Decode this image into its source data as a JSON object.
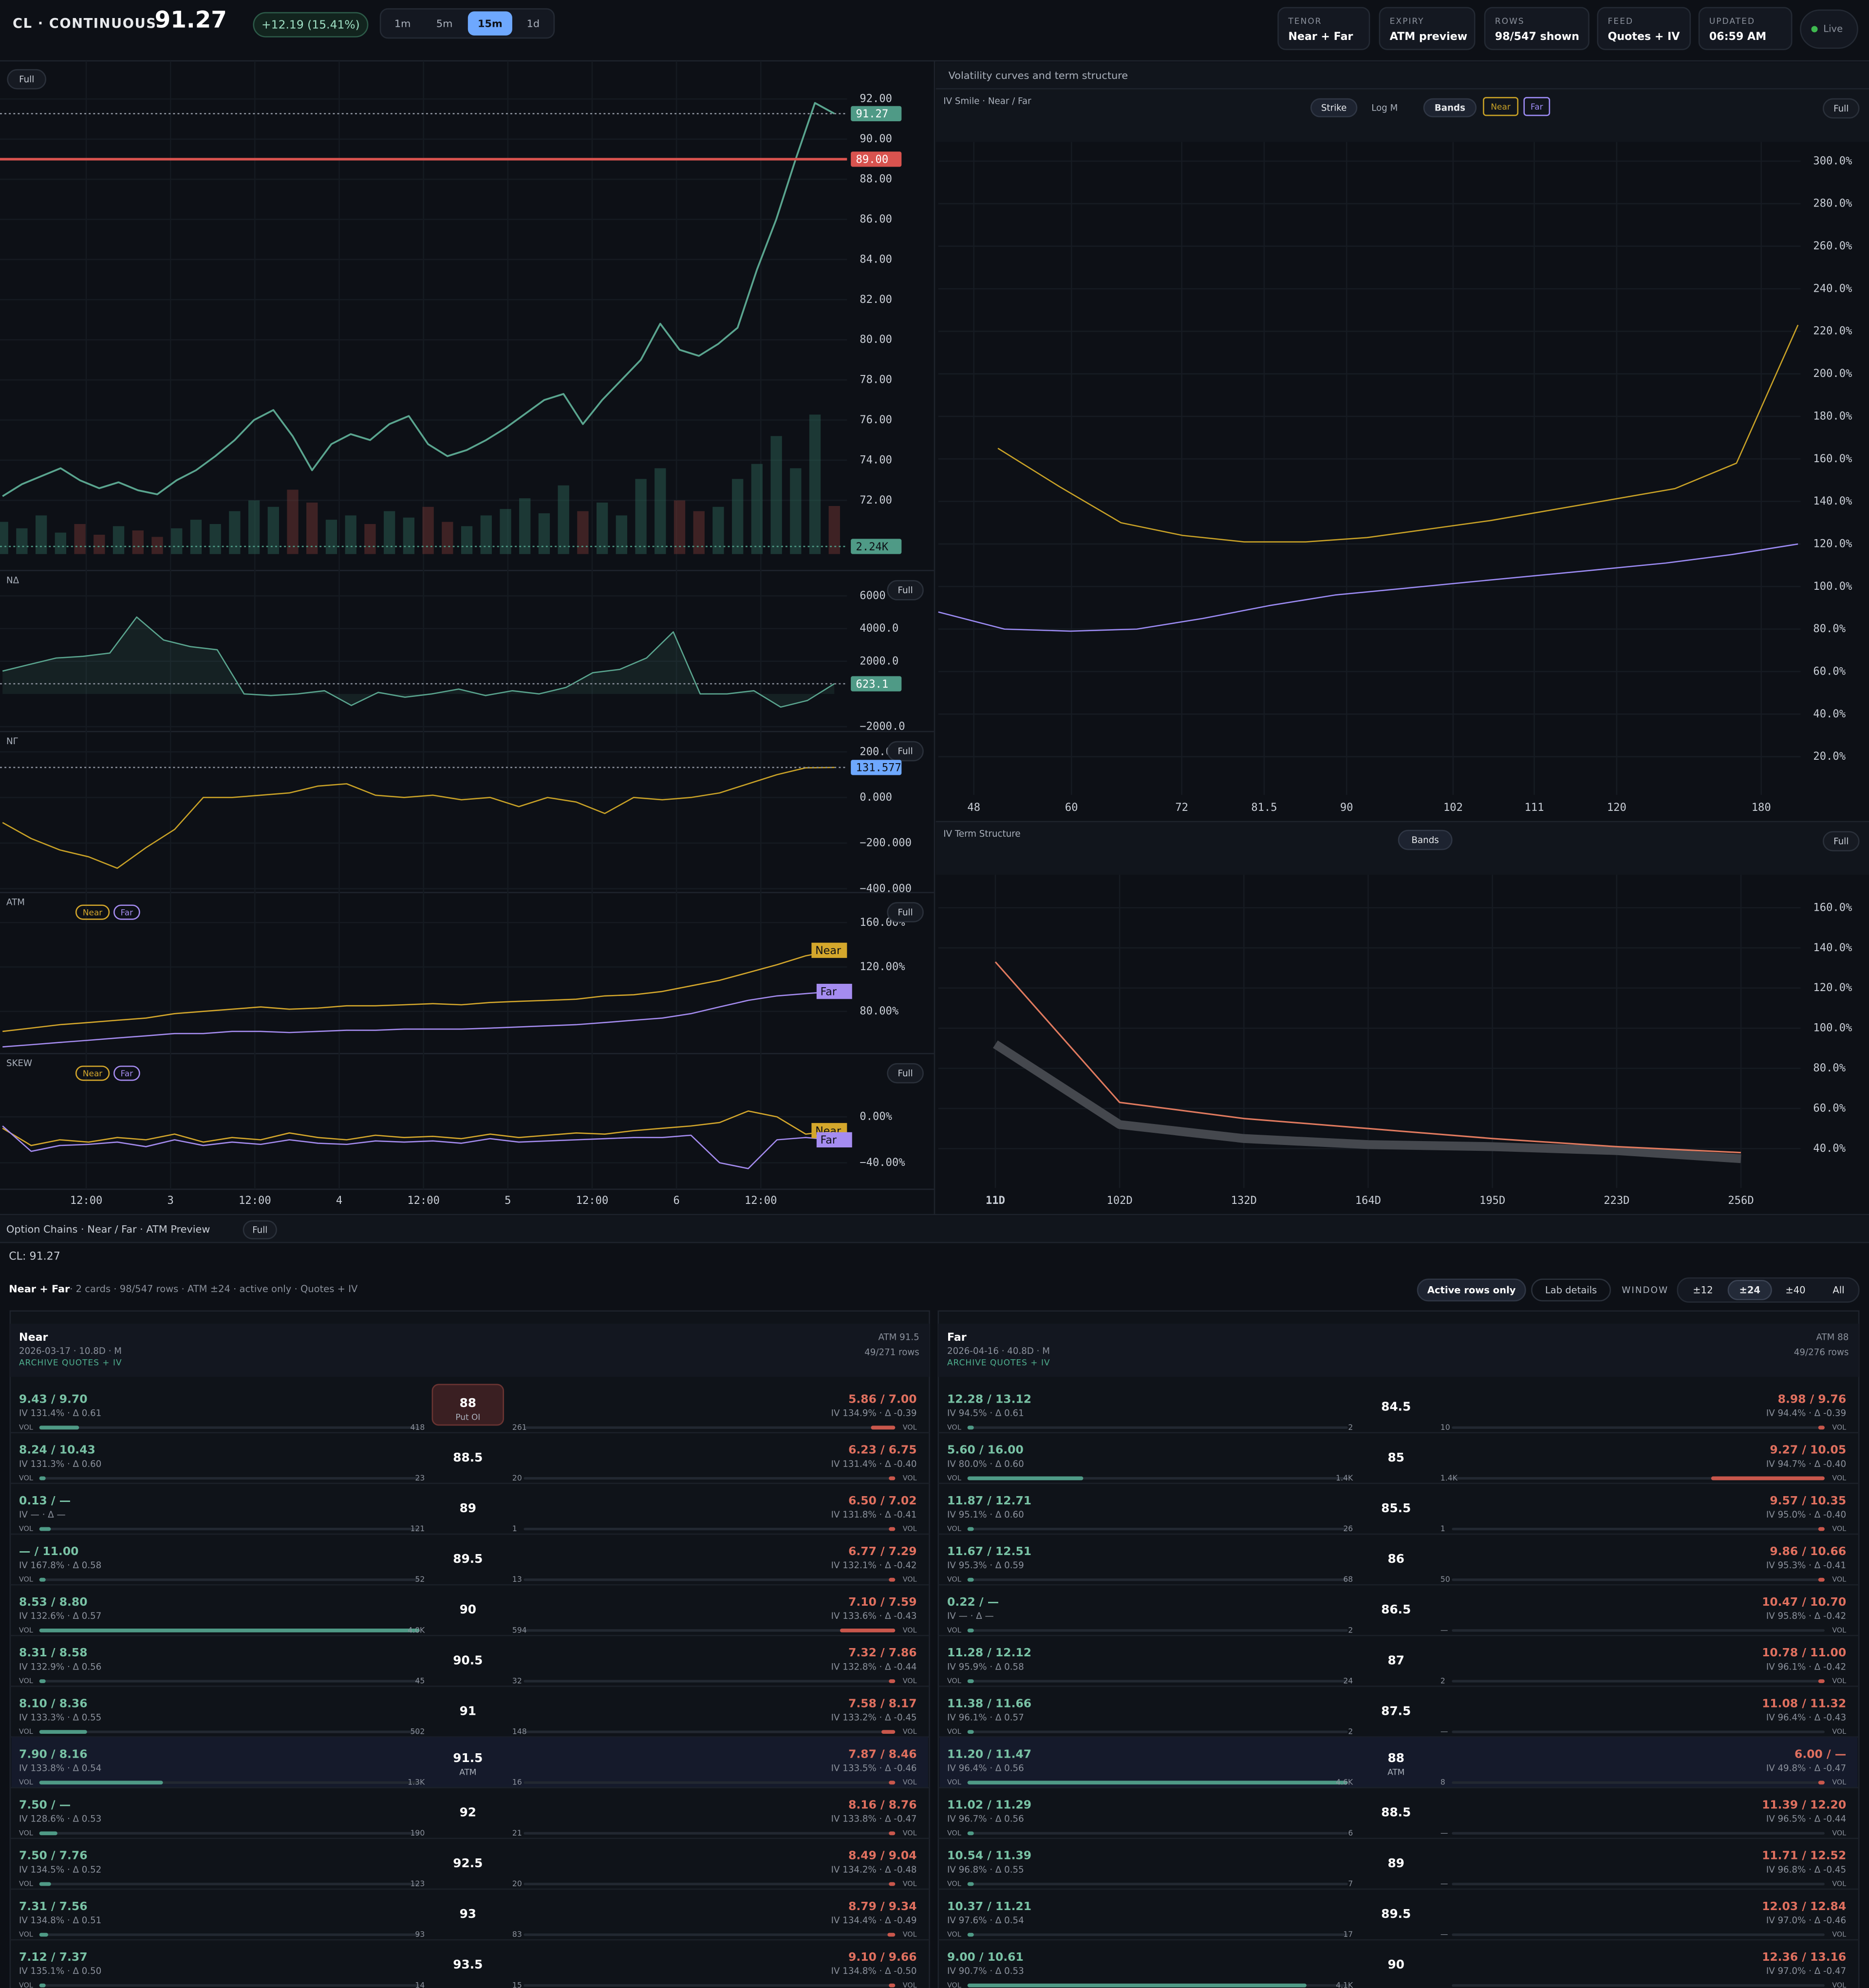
{
  "header": {
    "symbol": "CL · CONTINUOUS",
    "price": "91.27",
    "change": "+12.19 (15.41%)",
    "intervals": [
      "1m",
      "5m",
      "15m",
      "1d"
    ],
    "active_interval": "15m",
    "stats": [
      {
        "label": "TENOR",
        "value": "Near + Far"
      },
      {
        "label": "EXPIRY",
        "value": "ATM preview"
      },
      {
        "label": "ROWS",
        "value": "98/547 shown"
      },
      {
        "label": "FEED",
        "value": "Quotes + IV"
      },
      {
        "label": "UPDATED",
        "value": "06:59 AM"
      }
    ],
    "status": "Live"
  },
  "full_button": "Full",
  "right_title": "Volatility curves and term structure",
  "time_axis": [
    "12:00",
    "3",
    "12:00",
    "4",
    "12:00",
    "5",
    "12:00",
    "6",
    "12:00"
  ],
  "chart_data": [
    {
      "type": "line",
      "color": "#5aa58f",
      "ylim": [
        68.5,
        93.9
      ],
      "yticks": [
        {
          "value": 92,
          "label": "92.00"
        },
        {
          "value": 90,
          "label": "90.00"
        },
        {
          "value": 88,
          "label": "88.00"
        },
        {
          "value": 86,
          "label": "86.00"
        },
        {
          "value": 84,
          "label": "84.00"
        },
        {
          "value": 82,
          "label": "82.00"
        },
        {
          "value": 80,
          "label": "80.00"
        },
        {
          "value": 78,
          "label": "78.00"
        },
        {
          "value": 76,
          "label": "76.00"
        },
        {
          "value": 74,
          "label": "74.00"
        },
        {
          "value": 72,
          "label": "72.00"
        }
      ],
      "values": [
        72.2,
        72.8,
        73.2,
        73.6,
        73.0,
        72.6,
        72.9,
        72.5,
        72.3,
        73.0,
        73.5,
        74.2,
        75.0,
        76.0,
        76.5,
        75.2,
        73.5,
        74.8,
        75.3,
        75.0,
        75.8,
        76.2,
        74.8,
        74.2,
        74.5,
        75.0,
        75.6,
        76.3,
        77.0,
        77.3,
        75.8,
        77.0,
        78.0,
        79.0,
        80.8,
        79.5,
        79.2,
        79.8,
        80.6,
        83.5,
        86.0,
        89.0,
        91.8,
        91.27
      ],
      "volumes": [
        1.5,
        1.2,
        1.8,
        1.0,
        1.4,
        0.9,
        1.3,
        1.1,
        0.8,
        1.2,
        1.6,
        1.4,
        2.0,
        2.5,
        2.2,
        3.0,
        2.4,
        1.6,
        1.8,
        1.4,
        2.0,
        1.7,
        2.2,
        1.5,
        1.3,
        1.8,
        2.1,
        2.6,
        1.9,
        3.2,
        2.0,
        2.4,
        1.8,
        3.5,
        4.0,
        2.5,
        2.0,
        2.2,
        3.5,
        4.2,
        5.5,
        4.0,
        6.5,
        2.24
      ],
      "volume_tag": "2.24K",
      "tags": [
        {
          "value": 91.27,
          "label": "91.27",
          "color": "#4f9a86",
          "line": "dotted"
        },
        {
          "value": 89,
          "label": "89.00",
          "color": "#d9534f",
          "line": "solid"
        }
      ]
    },
    {
      "type": "line",
      "title": "NΔ",
      "color": "#5aa58f",
      "ylim": [
        -2300,
        7550
      ],
      "yticks": [
        6000,
        {
          "value": 4000,
          "label": "4000.0"
        },
        {
          "value": 2000,
          "label": "2000.0"
        },
        {
          "value": -2000,
          "label": "−2000.0"
        }
      ],
      "values": [
        1400,
        1800,
        2200,
        2300,
        2500,
        4700,
        3300,
        2900,
        2700,
        0,
        -100,
        0,
        200,
        -700,
        100,
        -200,
        0,
        300,
        -100,
        200,
        0,
        400,
        1300,
        1500,
        2200,
        3800,
        0,
        0,
        200,
        -800,
        -400,
        623.1
      ],
      "tags": [
        {
          "value": 623.1,
          "label": "623.1",
          "color": "#4f9a86",
          "line": "dotted"
        }
      ]
    },
    {
      "type": "line",
      "title": "NΓ",
      "color": "#c9a227",
      "ylim": [
        -417,
        289
      ],
      "yticks": [
        {
          "value": 200,
          "label": "200.000"
        },
        {
          "value": 0,
          "label": "0.000"
        },
        {
          "value": -200,
          "label": "−200.000"
        },
        {
          "value": -400,
          "label": "−400.000"
        }
      ],
      "values": [
        -110,
        -180,
        -230,
        -260,
        -310,
        -220,
        -140,
        0,
        0,
        10,
        20,
        50,
        60,
        10,
        0,
        10,
        -10,
        0,
        -40,
        0,
        -20,
        -70,
        0,
        -10,
        0,
        20,
        60,
        100,
        130,
        131.577
      ],
      "tags": [
        {
          "value": 131.577,
          "label": "131.577",
          "color": "#6ea8fe",
          "line": "dotted"
        }
      ]
    },
    {
      "type": "line",
      "title": "ATM",
      "ylim": [
        42,
        187
      ],
      "series_tags": true,
      "yticks": [
        {
          "value": 160,
          "label": "160.00%"
        },
        {
          "value": 120,
          "label": "120.00%"
        },
        {
          "value": 80,
          "label": "80.00%"
        }
      ],
      "series": [
        {
          "name": "Near",
          "color": "#d4a72c",
          "values": [
            62,
            65,
            68,
            70,
            72,
            74,
            78,
            80,
            82,
            84,
            82,
            83,
            85,
            85,
            86,
            87,
            86,
            88,
            89,
            90,
            91,
            94,
            95,
            98,
            103,
            108,
            115,
            122,
            130,
            135
          ]
        },
        {
          "name": "Far",
          "color": "#a58cf0",
          "values": [
            48,
            50,
            52,
            54,
            56,
            58,
            60,
            60,
            62,
            62,
            61,
            62,
            63,
            63,
            64,
            64,
            64,
            65,
            66,
            67,
            68,
            70,
            72,
            74,
            78,
            84,
            90,
            94,
            96,
            98
          ]
        }
      ]
    },
    {
      "type": "line",
      "title": "SKEW",
      "ylim": [
        -63,
        55
      ],
      "series_tags": true,
      "yticks": [
        {
          "value": 0,
          "label": "0.00%"
        },
        {
          "value": -40,
          "label": "−40.00%"
        }
      ],
      "series": [
        {
          "name": "Near",
          "color": "#d4a72c",
          "values": [
            -10,
            -25,
            -20,
            -22,
            -18,
            -20,
            -15,
            -22,
            -18,
            -20,
            -14,
            -18,
            -20,
            -16,
            -18,
            -17,
            -19,
            -15,
            -18,
            -16,
            -14,
            -15,
            -12,
            -10,
            -8,
            -5,
            5,
            0,
            -15,
            -12
          ]
        },
        {
          "name": "Far",
          "color": "#a58cf0",
          "values": [
            -8,
            -30,
            -25,
            -24,
            -22,
            -26,
            -20,
            -25,
            -22,
            -24,
            -20,
            -23,
            -24,
            -21,
            -22,
            -21,
            -23,
            -19,
            -22,
            -21,
            -20,
            -19,
            -18,
            -18,
            -16,
            -40,
            -45,
            -20,
            -18,
            -20
          ]
        }
      ]
    },
    {
      "type": "line",
      "title": "IV Smile · Near / Far",
      "buttons": [
        "Strike",
        "Log M",
        "Bands"
      ],
      "ylim": [
        2,
        309
      ],
      "yticks": [
        {
          "value": 300,
          "label": "300.0%"
        },
        {
          "value": 280,
          "label": "280.0%"
        },
        {
          "value": 260,
          "label": "260.0%"
        },
        {
          "value": 240,
          "label": "240.0%"
        },
        {
          "value": 220,
          "label": "220.0%"
        },
        {
          "value": 200,
          "label": "200.0%"
        },
        {
          "value": 180,
          "label": "180.0%"
        },
        {
          "value": 160,
          "label": "160.0%"
        },
        {
          "value": 140,
          "label": "140.0%"
        },
        {
          "value": 120,
          "label": "120.0%"
        },
        {
          "value": 100,
          "label": "100.0%"
        },
        {
          "value": 80,
          "label": "80.0%"
        },
        {
          "value": 60,
          "label": "60.0%"
        },
        {
          "value": 40,
          "label": "40.0%"
        },
        {
          "value": 20,
          "label": "20.0%"
        }
      ],
      "xticks": [
        48,
        60,
        72,
        81.5,
        90,
        102,
        111,
        120,
        180
      ],
      "series": [
        {
          "name": "Near",
          "color": "#c9a227",
          "values": [
            165,
            147,
            130,
            124,
            121,
            121,
            123,
            127,
            131,
            136,
            141,
            146,
            158,
            223
          ]
        },
        {
          "name": "Far",
          "color": "#9d8cf5",
          "values": [
            88,
            80,
            79,
            80,
            85,
            91,
            96,
            99,
            102,
            105,
            108,
            111,
            115,
            120
          ]
        }
      ]
    },
    {
      "type": "line",
      "title": "IV Term Structure",
      "buttons": [
        "Bands"
      ],
      "ylim": [
        20.4,
        176.4
      ],
      "yticks": [
        {
          "value": 160,
          "label": "160.0%"
        },
        {
          "value": 140,
          "label": "140.0%"
        },
        {
          "value": 120,
          "label": "120.0%"
        },
        {
          "value": 100,
          "label": "100.0%"
        },
        {
          "value": 80,
          "label": "80.0%"
        },
        {
          "value": 60,
          "label": "60.0%"
        },
        {
          "value": 40,
          "label": "40.0%"
        }
      ],
      "categories": [
        "11D",
        "102D",
        "132D",
        "164D",
        "195D",
        "223D",
        "256D"
      ],
      "series": [
        {
          "color": "#45484e",
          "values": [
            92,
            52,
            45,
            42,
            41,
            39,
            35
          ]
        },
        {
          "color": "#e07a5f",
          "values": [
            133,
            63,
            55,
            50,
            45,
            41,
            38
          ]
        }
      ]
    }
  ],
  "chains": {
    "title": "Option Chains · Near / Far · ATM Preview",
    "underlying": "CL: 91.27",
    "summary_title": "Near + Far",
    "summary": "· 2 cards · 98/547 rows · ATM ±24 · active only · Quotes + IV",
    "buttons": [
      "Active rows only",
      "Lab details"
    ],
    "window_label": "WINDOW",
    "windows": [
      "±12",
      "±24",
      "±40",
      "All"
    ],
    "active_window": "±24",
    "vol_label": "VOL",
    "cards": [
      {
        "name": "Near",
        "meta": "2026-03-17 · 10.8D · M",
        "source": "ARCHIVE QUOTES + IV",
        "atm": "ATM 91.5",
        "count": "49/271 rows",
        "rows": [
          {
            "call": "9.43 / 9.70",
            "call_iv": "IV 131.4% · Δ 0.61",
            "call_vol": "418",
            "strike": "88",
            "note": "Put OI",
            "put": "5.86 / 7.00",
            "put_iv": "IV 134.9% · Δ -0.39",
            "put_vol": "261"
          },
          {
            "call": "8.24 / 10.43",
            "call_iv": "IV 131.3% · Δ 0.60",
            "call_vol": "23",
            "strike": "88.5",
            "put": "6.23 / 6.75",
            "put_iv": "IV 131.4% · Δ -0.40",
            "put_vol": "20"
          },
          {
            "call": "0.13 / —",
            "call_iv": "IV — · Δ —",
            "call_vol": "121",
            "strike": "89",
            "put": "6.50 / 7.02",
            "put_iv": "IV 131.8% · Δ -0.41",
            "put_vol": "1"
          },
          {
            "call": "— / 11.00",
            "call_iv": "IV 167.8% · Δ 0.58",
            "call_vol": "52",
            "strike": "89.5",
            "put": "6.77 / 7.29",
            "put_iv": "IV 132.1% · Δ -0.42",
            "put_vol": "13"
          },
          {
            "call": "8.53 / 8.80",
            "call_iv": "IV 132.6% · Δ 0.57",
            "call_vol": "4.0K",
            "strike": "90",
            "put": "7.10 / 7.59",
            "put_iv": "IV 133.6% · Δ -0.43",
            "put_vol": "594"
          },
          {
            "call": "8.31 / 8.58",
            "call_iv": "IV 132.9% · Δ 0.56",
            "call_vol": "45",
            "strike": "90.5",
            "put": "7.32 / 7.86",
            "put_iv": "IV 132.8% · Δ -0.44",
            "put_vol": "32"
          },
          {
            "call": "8.10 / 8.36",
            "call_iv": "IV 133.3% · Δ 0.55",
            "call_vol": "502",
            "strike": "91",
            "put": "7.58 / 8.17",
            "put_iv": "IV 133.2% · Δ -0.45",
            "put_vol": "148"
          },
          {
            "call": "7.90 / 8.16",
            "call_iv": "IV 133.8% · Δ 0.54",
            "call_vol": "1.3K",
            "strike": "91.5",
            "note": "ATM",
            "atm": true,
            "put": "7.87 / 8.46",
            "put_iv": "IV 133.5% · Δ -0.46",
            "put_vol": "16"
          },
          {
            "call": "7.50 / —",
            "call_iv": "IV 128.6% · Δ 0.53",
            "call_vol": "190",
            "strike": "92",
            "put": "8.16 / 8.76",
            "put_iv": "IV 133.8% · Δ -0.47",
            "put_vol": "21"
          },
          {
            "call": "7.50 / 7.76",
            "call_iv": "IV 134.5% · Δ 0.52",
            "call_vol": "123",
            "strike": "92.5",
            "put": "8.49 / 9.04",
            "put_iv": "IV 134.2% · Δ -0.48",
            "put_vol": "20"
          },
          {
            "call": "7.31 / 7.56",
            "call_iv": "IV 134.8% · Δ 0.51",
            "call_vol": "93",
            "strike": "93",
            "put": "8.79 / 9.34",
            "put_iv": "IV 134.4% · Δ -0.49",
            "put_vol": "83"
          },
          {
            "call": "7.12 / 7.37",
            "call_iv": "IV 135.1% · Δ 0.50",
            "call_vol": "14",
            "strike": "93.5",
            "put": "9.10 / 9.66",
            "put_iv": "IV 134.8% · Δ -0.50",
            "put_vol": "15"
          }
        ]
      },
      {
        "name": "Far",
        "meta": "2026-04-16 · 40.8D · M",
        "source": "ARCHIVE QUOTES + IV",
        "atm": "ATM 88",
        "count": "49/276 rows",
        "rows": [
          {
            "call": "12.28 / 13.12",
            "call_iv": "IV 94.5% · Δ 0.61",
            "call_vol": "2",
            "strike": "84.5",
            "put": "8.98 / 9.76",
            "put_iv": "IV 94.4% · Δ -0.39",
            "put_vol": "10"
          },
          {
            "call": "5.60 / 16.00",
            "call_iv": "IV 80.0% · Δ 0.60",
            "call_vol": "1.4K",
            "strike": "85",
            "put": "9.27 / 10.05",
            "put_iv": "IV 94.7% · Δ -0.40",
            "put_vol": "1.4K"
          },
          {
            "call": "11.87 / 12.71",
            "call_iv": "IV 95.1% · Δ 0.60",
            "call_vol": "26",
            "strike": "85.5",
            "put": "9.57 / 10.35",
            "put_iv": "IV 95.0% · Δ -0.40",
            "put_vol": "1"
          },
          {
            "call": "11.67 / 12.51",
            "call_iv": "IV 95.3% · Δ 0.59",
            "call_vol": "68",
            "strike": "86",
            "put": "9.86 / 10.66",
            "put_iv": "IV 95.3% · Δ -0.41",
            "put_vol": "50"
          },
          {
            "call": "0.22 / —",
            "call_iv": "IV — · Δ —",
            "call_vol": "2",
            "strike": "86.5",
            "put": "10.47 / 10.70",
            "put_iv": "IV 95.8% · Δ -0.42",
            "put_vol": "—"
          },
          {
            "call": "11.28 / 12.12",
            "call_iv": "IV 95.9% · Δ 0.58",
            "call_vol": "24",
            "strike": "87",
            "put": "10.78 / 11.00",
            "put_iv": "IV 96.1% · Δ -0.42",
            "put_vol": "2"
          },
          {
            "call": "11.38 / 11.66",
            "call_iv": "IV 96.1% · Δ 0.57",
            "call_vol": "2",
            "strike": "87.5",
            "put": "11.08 / 11.32",
            "put_iv": "IV 96.4% · Δ -0.43",
            "put_vol": "—"
          },
          {
            "call": "11.20 / 11.47",
            "call_iv": "IV 96.4% · Δ 0.56",
            "call_vol": "4.6K",
            "strike": "88",
            "note": "ATM",
            "atm": true,
            "put": "6.00 / —",
            "put_iv": "IV 49.8% · Δ -0.47",
            "put_vol": "8"
          },
          {
            "call": "11.02 / 11.29",
            "call_iv": "IV 96.7% · Δ 0.56",
            "call_vol": "6",
            "strike": "88.5",
            "put": "11.39 / 12.20",
            "put_iv": "IV 96.5% · Δ -0.44",
            "put_vol": "—"
          },
          {
            "call": "10.54 / 11.39",
            "call_iv": "IV 96.8% · Δ 0.55",
            "call_vol": "7",
            "strike": "89",
            "put": "11.71 / 12.52",
            "put_iv": "IV 96.8% · Δ -0.45",
            "put_vol": "—"
          },
          {
            "call": "10.37 / 11.21",
            "call_iv": "IV 97.6% · Δ 0.54",
            "call_vol": "17",
            "strike": "89.5",
            "put": "12.03 / 12.84",
            "put_iv": "IV 97.0% · Δ -0.46",
            "put_vol": "—"
          },
          {
            "call": "9.00 / 10.61",
            "call_iv": "IV 90.7% · Δ 0.53",
            "call_vol": "4.1K",
            "strike": "90",
            "put": "12.36 / 13.16",
            "put_iv": "IV 97.0% · Δ -0.47",
            "put_vol": null
          }
        ]
      }
    ]
  }
}
